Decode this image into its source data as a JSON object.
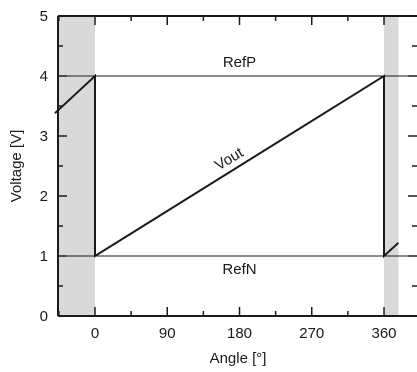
{
  "chart_data": {
    "type": "line",
    "title": "",
    "xlabel": "Angle [°]",
    "ylabel": "Voltage [V]",
    "xlim": [
      -50,
      378
    ],
    "ylim": [
      0,
      5
    ],
    "x_ticks": [
      0,
      90,
      180,
      270,
      360
    ],
    "x_tick_labels": [
      "0",
      "90",
      "180",
      "270",
      "360"
    ],
    "x_minor_ticks": [
      -45,
      45,
      135,
      225,
      315
    ],
    "y_ticks": [
      0,
      1,
      2,
      3,
      4,
      5
    ],
    "y_tick_labels": [
      "0",
      "1",
      "2",
      "3",
      "4",
      "5"
    ],
    "y_minor_ticks": [
      0.5,
      1.5,
      2.5,
      3.5,
      4.5
    ],
    "grid": false,
    "shaded_regions": [
      {
        "x0": -50,
        "x1": 0,
        "color": "#d9d9d9"
      },
      {
        "x0": 360,
        "x1": 378,
        "color": "#d9d9d9"
      }
    ],
    "reference_lines": [
      {
        "name": "RefP",
        "y": 4
      },
      {
        "name": "RefN",
        "y": 1
      }
    ],
    "series": [
      {
        "name": "Vout",
        "x": [
          -50,
          0,
          0,
          360,
          360,
          378
        ],
        "y": [
          3.38,
          4,
          1,
          4,
          1,
          1.22
        ]
      }
    ],
    "annotations": [
      {
        "text": "RefP",
        "x": 180,
        "y": 4.15
      },
      {
        "text": "RefN",
        "x": 180,
        "y": 0.7
      },
      {
        "text": "Vout",
        "x": 170,
        "y": 2.55,
        "rotate_deg": -31
      }
    ]
  }
}
